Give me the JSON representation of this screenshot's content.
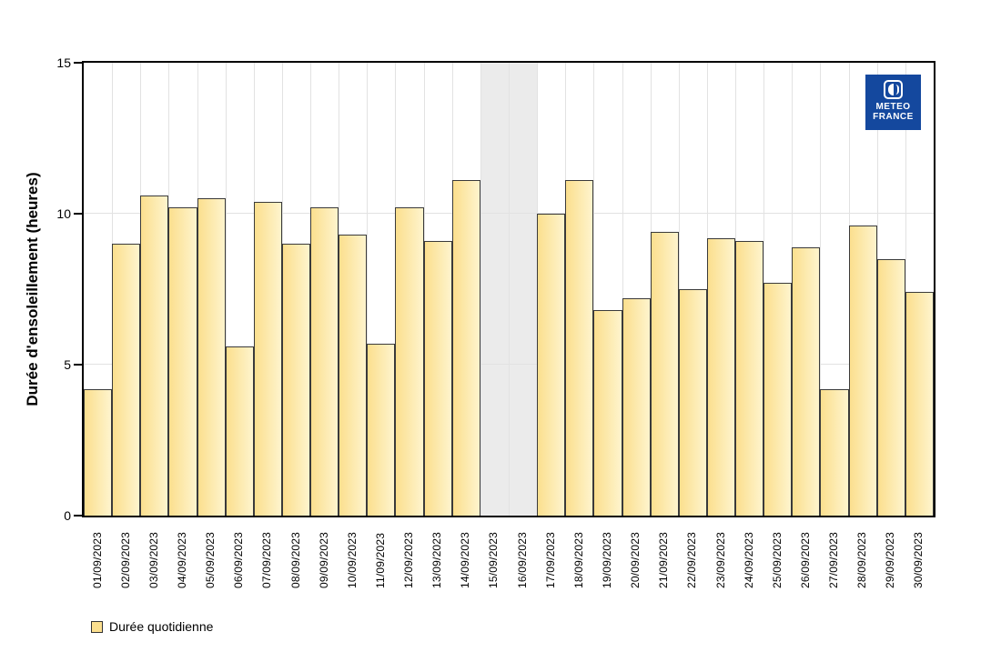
{
  "chart_data": {
    "type": "bar",
    "title": "",
    "xlabel": "",
    "ylabel": "Durée d'ensoleillement (heures)",
    "ylim": [
      0,
      15
    ],
    "yticks": [
      0,
      5,
      10,
      15
    ],
    "grid": true,
    "legend_position": "bottom-left",
    "categories": [
      "01/09/2023",
      "02/09/2023",
      "03/09/2023",
      "04/09/2023",
      "05/09/2023",
      "06/09/2023",
      "07/09/2023",
      "08/09/2023",
      "09/09/2023",
      "10/09/2023",
      "11/09/2023",
      "12/09/2023",
      "13/09/2023",
      "14/09/2023",
      "15/09/2023",
      "16/09/2023",
      "17/09/2023",
      "18/09/2023",
      "19/09/2023",
      "20/09/2023",
      "21/09/2023",
      "22/09/2023",
      "23/09/2023",
      "24/09/2023",
      "25/09/2023",
      "26/09/2023",
      "27/09/2023",
      "28/09/2023",
      "29/09/2023",
      "30/09/2023"
    ],
    "values": [
      4.2,
      9.0,
      10.6,
      10.2,
      10.5,
      5.6,
      10.4,
      9.0,
      10.2,
      9.3,
      5.7,
      10.2,
      9.1,
      11.1,
      null,
      null,
      10.0,
      11.1,
      6.8,
      7.2,
      9.4,
      7.5,
      9.2,
      9.1,
      7.7,
      8.9,
      4.2,
      9.6,
      8.5,
      7.4
    ],
    "missing_dates": [
      "15/09/2023",
      "16/09/2023"
    ],
    "legend": {
      "label": "Durée quotidienne"
    }
  },
  "logo": {
    "line1": "METEO",
    "line2": "FRANCE"
  },
  "colors": {
    "bar_fill_left": "#fbdf8e",
    "bar_fill_right": "#fef4cd",
    "bar_border": "#3a3a3a",
    "missing_band": "#ebebeb",
    "gridline": "#e2e2e2",
    "axis": "#000000",
    "logo_background": "#14489e"
  }
}
